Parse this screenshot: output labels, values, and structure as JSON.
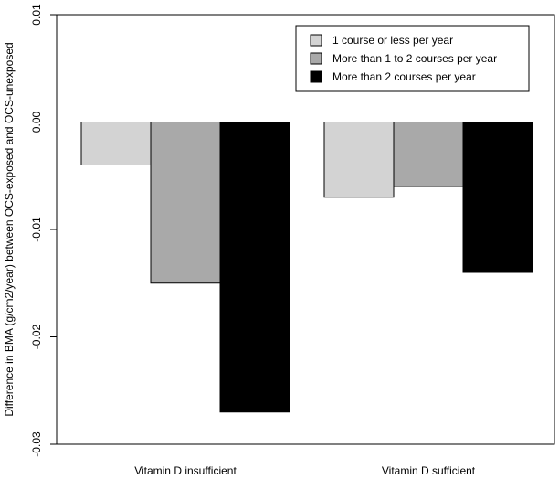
{
  "chart_data": {
    "type": "bar",
    "categories": [
      "Vitamin D insufficient",
      "Vitamin D sufficient"
    ],
    "series": [
      {
        "name": "1 course or less per year",
        "values": [
          -0.004,
          -0.007
        ],
        "color": "#d3d3d3"
      },
      {
        "name": "More than 1 to 2 courses per year",
        "values": [
          -0.015,
          -0.006
        ],
        "color": "#a9a9a9"
      },
      {
        "name": "More than 2 courses per year",
        "values": [
          -0.027,
          -0.014
        ],
        "color": "#000000"
      }
    ],
    "ylabel": "Difference in BMA (g/cm2/year) between OCS-exposed and OCS-unexposed",
    "xlabel": "",
    "title": "",
    "ylim": [
      -0.03,
      0.01
    ],
    "yticks": [
      0.01,
      0.0,
      -0.01,
      -0.02,
      -0.03
    ],
    "ytick_labels": [
      "0.01",
      "0.00",
      "-0.01",
      "-0.02",
      "-0.03"
    ],
    "grid": false,
    "legend_position": "top-right"
  }
}
